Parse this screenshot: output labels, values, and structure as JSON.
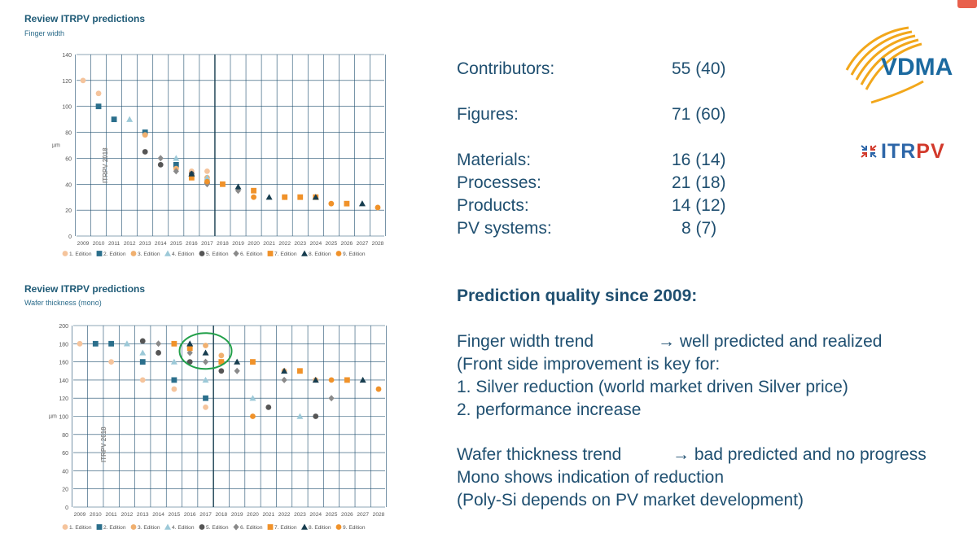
{
  "top_chart": {
    "title": "Review ITRPV predictions",
    "subtitle": "Finger width",
    "watermark": "ITRPV 2018"
  },
  "bottom_chart": {
    "title": "Review ITRPV predictions",
    "subtitle": "Wafer thickness (mono)",
    "watermark": "ITRPV 2018"
  },
  "stats": [
    {
      "label": "Contributors:",
      "value": "55 (40)"
    },
    {
      "label": "Figures:",
      "value": "71 (60)"
    },
    {
      "label": "Materials:",
      "value": "16 (14)"
    },
    {
      "label": "Processes:",
      "value": "21 (18)"
    },
    {
      "label": "Products:",
      "value": "14 (12)"
    },
    {
      "label": "PV systems:",
      "value": "8 (7)"
    }
  ],
  "prediction": {
    "heading": "Prediction quality since 2009:",
    "finger_label": "Finger width trend",
    "finger_result": "→ well predicted and realized",
    "finger_lines": [
      "(Front side improvement is key for:",
      "1. Silver reduction (world market driven Silver price)",
      "2. performance increase"
    ],
    "wafer_label": "Wafer thickness trend",
    "wafer_result": "→ bad predicted and no progress",
    "wafer_lines": [
      "Mono shows indication of reduction",
      "(Poly-Si depends on PV market development)"
    ]
  },
  "logos": {
    "vdma": "VDMA",
    "itrpv_a": "ITR",
    "itrpv_b": "PV"
  },
  "editions": [
    {
      "name": "1. Edition",
      "color": "#f5c49c",
      "shape": "circle"
    },
    {
      "name": "2. Edition",
      "color": "#2b6f8c",
      "shape": "square"
    },
    {
      "name": "3. Edition",
      "color": "#f0b070",
      "shape": "circle"
    },
    {
      "name": "4. Edition",
      "color": "#9cc9d8",
      "shape": "triangle"
    },
    {
      "name": "5. Edition",
      "color": "#555555",
      "shape": "circle"
    },
    {
      "name": "6. Edition",
      "color": "#8a8a8a",
      "shape": "diamond"
    },
    {
      "name": "7. Edition",
      "color": "#f0922a",
      "shape": "square"
    },
    {
      "name": "8. Edition",
      "color": "#173d4f",
      "shape": "triangle"
    },
    {
      "name": "9. Edition",
      "color": "#f0922a",
      "shape": "circle"
    }
  ],
  "chart_data": [
    {
      "type": "scatter",
      "title": "Review ITRPV predictions",
      "subtitle": "Finger width",
      "ylabel": "µm",
      "xlim": [
        2009,
        2028
      ],
      "ylim": [
        0,
        140
      ],
      "yticks": [
        0,
        20,
        40,
        60,
        80,
        100,
        120,
        140
      ],
      "x": [
        2009,
        2010,
        2011,
        2012,
        2013,
        2014,
        2015,
        2016,
        2017,
        2018,
        2019,
        2020,
        2021,
        2022,
        2023,
        2024,
        2025,
        2026,
        2027,
        2028
      ],
      "grid": true,
      "legend": "bottom",
      "series": [
        {
          "name": "1. Edition",
          "points": [
            [
              2009,
              120
            ],
            [
              2010,
              110
            ],
            [
              2013,
              78
            ],
            [
              2016,
              50
            ],
            [
              2017,
              50
            ]
          ]
        },
        {
          "name": "2. Edition",
          "points": [
            [
              2010,
              100
            ],
            [
              2011,
              90
            ],
            [
              2013,
              80
            ],
            [
              2015,
              55
            ]
          ]
        },
        {
          "name": "3. Edition",
          "points": [
            [
              2013,
              78
            ],
            [
              2015,
              52
            ],
            [
              2017,
              45
            ]
          ]
        },
        {
          "name": "4. Edition",
          "points": [
            [
              2012,
              90
            ],
            [
              2015,
              60
            ],
            [
              2017,
              45
            ]
          ]
        },
        {
          "name": "5. Edition",
          "points": [
            [
              2013,
              65
            ],
            [
              2014,
              55
            ],
            [
              2016,
              48
            ],
            [
              2017,
              41
            ]
          ]
        },
        {
          "name": "6. Edition",
          "points": [
            [
              2014,
              60
            ],
            [
              2015,
              50
            ],
            [
              2017,
              40
            ],
            [
              2019,
              35
            ]
          ]
        },
        {
          "name": "7. Edition",
          "points": [
            [
              2016,
              45
            ],
            [
              2018,
              40
            ],
            [
              2020,
              35
            ],
            [
              2022,
              30
            ],
            [
              2023,
              30
            ],
            [
              2024,
              30
            ],
            [
              2026,
              25
            ]
          ]
        },
        {
          "name": "8. Edition",
          "points": [
            [
              2016,
              48
            ],
            [
              2019,
              38
            ],
            [
              2021,
              30
            ],
            [
              2024,
              30
            ],
            [
              2027,
              25
            ]
          ]
        },
        {
          "name": "9. Edition",
          "points": [
            [
              2017,
              42
            ],
            [
              2020,
              30
            ],
            [
              2022,
              30
            ],
            [
              2025,
              25
            ],
            [
              2028,
              22
            ]
          ]
        }
      ]
    },
    {
      "type": "scatter",
      "title": "Review ITRPV predictions",
      "subtitle": "Wafer thickness (mono)",
      "ylabel": "µm",
      "xlim": [
        2009,
        2028
      ],
      "ylim": [
        0,
        200
      ],
      "yticks": [
        0,
        20,
        40,
        60,
        80,
        100,
        120,
        140,
        160,
        180,
        200
      ],
      "x": [
        2009,
        2010,
        2011,
        2012,
        2013,
        2014,
        2015,
        2016,
        2017,
        2018,
        2019,
        2020,
        2021,
        2022,
        2023,
        2024,
        2025,
        2026,
        2027,
        2028
      ],
      "grid": true,
      "legend": "bottom",
      "series": [
        {
          "name": "1. Edition",
          "points": [
            [
              2009,
              180
            ],
            [
              2011,
              160
            ],
            [
              2013,
              140
            ],
            [
              2015,
              130
            ],
            [
              2017,
              110
            ]
          ]
        },
        {
          "name": "2. Edition",
          "points": [
            [
              2010,
              180
            ],
            [
              2011,
              180
            ],
            [
              2013,
              160
            ],
            [
              2015,
              140
            ],
            [
              2017,
              120
            ]
          ]
        },
        {
          "name": "3. Edition",
          "points": [
            [
              2016,
              175
            ],
            [
              2017,
              178
            ],
            [
              2018,
              167
            ],
            [
              2022,
              150
            ],
            [
              2024,
              140
            ]
          ]
        },
        {
          "name": "4. Edition",
          "points": [
            [
              2012,
              180
            ],
            [
              2013,
              170
            ],
            [
              2015,
              160
            ],
            [
              2017,
              140
            ],
            [
              2020,
              120
            ],
            [
              2023,
              100
            ]
          ]
        },
        {
          "name": "5. Edition",
          "points": [
            [
              2013,
              183
            ],
            [
              2014,
              170
            ],
            [
              2016,
              160
            ],
            [
              2018,
              150
            ],
            [
              2021,
              110
            ],
            [
              2024,
              100
            ]
          ]
        },
        {
          "name": "6. Edition",
          "points": [
            [
              2014,
              180
            ],
            [
              2016,
              170
            ],
            [
              2017,
              160
            ],
            [
              2019,
              150
            ],
            [
              2022,
              140
            ],
            [
              2025,
              120
            ]
          ]
        },
        {
          "name": "7. Edition",
          "points": [
            [
              2015,
              180
            ],
            [
              2016,
              175
            ],
            [
              2018,
              160
            ],
            [
              2020,
              160
            ],
            [
              2023,
              150
            ],
            [
              2026,
              140
            ]
          ]
        },
        {
          "name": "8. Edition",
          "points": [
            [
              2016,
              180
            ],
            [
              2017,
              170
            ],
            [
              2019,
              160
            ],
            [
              2022,
              150
            ],
            [
              2024,
              140
            ],
            [
              2027,
              140
            ]
          ]
        },
        {
          "name": "9. Edition",
          "points": [
            [
              2018,
              160
            ],
            [
              2020,
              100
            ],
            [
              2025,
              140
            ],
            [
              2028,
              130
            ]
          ]
        }
      ]
    }
  ]
}
